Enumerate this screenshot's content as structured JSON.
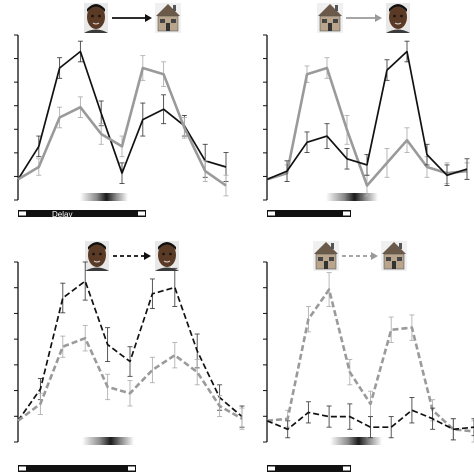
{
  "figure": {
    "delay_label": "Delay",
    "icons": [
      "face-icon",
      "house-icon",
      "arrow-icon"
    ],
    "colors": {
      "black": "#111111",
      "gray": "#9a9a9a",
      "errorbar_gray": "#b0b0b0"
    }
  },
  "chart_data": [
    {
      "type": "line",
      "panel": "top-left",
      "sequence": [
        "face",
        "house"
      ],
      "arrow": "solid-black",
      "x": [
        0,
        1,
        2,
        3,
        4,
        5,
        6,
        7,
        8,
        9,
        10
      ],
      "series": [
        {
          "color": "#111111",
          "dash": "solid",
          "values": [
            0.0,
            1.6,
            5.4,
            6.2,
            3.2,
            0.3,
            2.9,
            3.4,
            2.6,
            0.9,
            0.6
          ],
          "errors": [
            0.0,
            0.5,
            0.5,
            0.5,
            0.6,
            0.5,
            0.8,
            0.7,
            0.5,
            0.8,
            0.7
          ]
        },
        {
          "color": "#9a9a9a",
          "dash": "solid",
          "values": [
            0.0,
            0.6,
            3.0,
            3.5,
            2.2,
            1.6,
            5.4,
            5.1,
            2.5,
            0.4,
            -0.3
          ],
          "errors": [
            0.0,
            0.4,
            0.5,
            0.5,
            0.5,
            0.5,
            0.6,
            0.6,
            0.5,
            0.5,
            0.5
          ]
        }
      ],
      "ylim": [
        -1,
        7
      ]
    },
    {
      "type": "line",
      "panel": "top-right",
      "sequence": [
        "house",
        "face"
      ],
      "arrow": "solid-gray",
      "x": [
        0,
        1,
        2,
        3,
        4,
        5,
        6,
        7,
        8,
        9,
        10
      ],
      "series": [
        {
          "color": "#9a9a9a",
          "dash": "solid",
          "values": [
            0.0,
            0.3,
            5.1,
            5.4,
            2.4,
            -0.3,
            0.8,
            1.9,
            0.6,
            0.3,
            0.4
          ],
          "errors": [
            0.0,
            0.4,
            0.4,
            0.5,
            0.7,
            0.5,
            0.7,
            0.6,
            0.5,
            0.5,
            0.4
          ]
        },
        {
          "color": "#111111",
          "dash": "solid",
          "values": [
            0.0,
            0.4,
            1.8,
            2.1,
            1.0,
            0.7,
            5.3,
            6.2,
            1.2,
            0.2,
            0.5
          ],
          "errors": [
            0.0,
            0.5,
            0.5,
            0.6,
            0.5,
            0.5,
            0.5,
            0.5,
            0.5,
            0.5,
            0.5
          ]
        }
      ],
      "ylim": [
        -1,
        7
      ]
    },
    {
      "type": "line",
      "panel": "bottom-left",
      "sequence": [
        "face",
        "face"
      ],
      "arrow": "dashed-black",
      "x": [
        0,
        1,
        2,
        3,
        4,
        5,
        6,
        7,
        8,
        9,
        10
      ],
      "series": [
        {
          "color": "#111111",
          "dash": "dashed",
          "values": [
            0.0,
            1.5,
            5.8,
            6.6,
            3.6,
            2.8,
            6.0,
            6.3,
            3.3,
            1.1,
            0.2
          ],
          "errors": [
            0.0,
            0.5,
            0.7,
            0.9,
            0.8,
            0.7,
            0.7,
            0.9,
            0.8,
            0.6,
            0.5
          ]
        },
        {
          "color": "#9a9a9a",
          "dash": "dashed",
          "values": [
            0.0,
            0.8,
            3.5,
            3.9,
            1.6,
            1.3,
            2.4,
            3.1,
            2.3,
            0.7,
            0.1
          ],
          "errors": [
            0.0,
            0.5,
            0.5,
            0.6,
            0.6,
            0.6,
            0.6,
            0.6,
            0.6,
            0.5,
            0.5
          ]
        }
      ],
      "ylim": [
        -1,
        7.5
      ]
    },
    {
      "type": "line",
      "panel": "bottom-right",
      "sequence": [
        "house",
        "house"
      ],
      "arrow": "dashed-gray",
      "x": [
        0,
        1,
        2,
        3,
        4,
        5,
        6,
        7,
        8,
        9,
        10
      ],
      "series": [
        {
          "color": "#9a9a9a",
          "dash": "dashed",
          "values": [
            0.0,
            0.1,
            4.8,
            6.2,
            2.3,
            0.8,
            4.3,
            4.4,
            0.5,
            -0.4,
            -0.5
          ],
          "errors": [
            0.0,
            0.4,
            0.6,
            0.8,
            0.6,
            0.6,
            0.6,
            0.6,
            0.5,
            0.5,
            0.5
          ]
        },
        {
          "color": "#111111",
          "dash": "dashed",
          "values": [
            0.0,
            -0.4,
            0.4,
            0.2,
            0.2,
            -0.3,
            -0.3,
            0.5,
            0.1,
            -0.4,
            -0.3
          ],
          "errors": [
            0.0,
            0.4,
            0.5,
            0.5,
            0.6,
            0.5,
            0.5,
            0.6,
            0.5,
            0.5,
            0.4
          ]
        }
      ],
      "ylim": [
        -1,
        7.5
      ]
    }
  ]
}
